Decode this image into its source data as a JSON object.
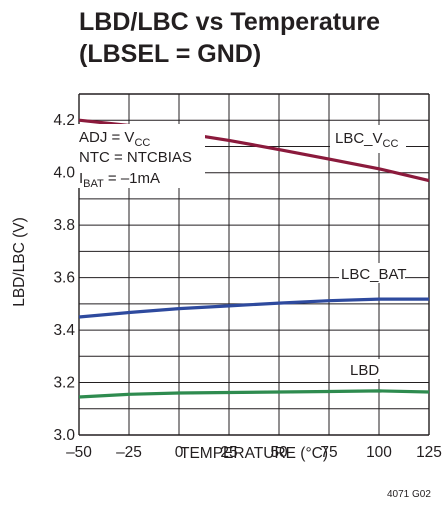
{
  "chart_data": {
    "type": "line",
    "title_line1": "LBD/LBC vs Temperature",
    "title_line2": "(LBSEL = GND)",
    "xlabel": "TEMPERATURE (°C)",
    "ylabel": "LBD/LBC (V)",
    "xlim": [
      -50,
      125
    ],
    "ylim": [
      3.0,
      4.3
    ],
    "grid": true,
    "x_ticks": [
      -50,
      -25,
      0,
      25,
      50,
      75,
      100,
      125
    ],
    "x_tick_labels": [
      "–50",
      "–25",
      "0",
      "25",
      "50",
      "75",
      "100",
      "125"
    ],
    "y_ticks": [
      3.0,
      3.2,
      3.4,
      3.6,
      3.8,
      4.0,
      4.2
    ],
    "y_tick_labels": [
      "3.0",
      "3.2",
      "3.4",
      "3.6",
      "3.8",
      "4.0",
      "4.2"
    ],
    "series": [
      {
        "name": "LBC_VCC",
        "color": "#8b1a3c",
        "x": [
          -50,
          -25,
          0,
          25,
          50,
          75,
          100,
          125
        ],
        "y": [
          4.2,
          4.18,
          4.153,
          4.123,
          4.088,
          4.052,
          4.015,
          3.97
        ]
      },
      {
        "name": "LBC_BAT",
        "color": "#2e4a9e",
        "x": [
          -50,
          -25,
          0,
          25,
          50,
          75,
          100,
          125
        ],
        "y": [
          3.45,
          3.467,
          3.482,
          3.492,
          3.503,
          3.512,
          3.518,
          3.518
        ]
      },
      {
        "name": "LBD",
        "color": "#2e8b4f",
        "x": [
          -50,
          -25,
          0,
          25,
          50,
          75,
          100,
          125
        ],
        "y": [
          3.145,
          3.155,
          3.16,
          3.162,
          3.164,
          3.166,
          3.168,
          3.164
        ]
      }
    ],
    "annotations": {
      "lbc_vcc_main": "LBC_V",
      "lbc_vcc_sub": "CC",
      "lbc_bat": "LBC_BAT",
      "lbd": "LBD",
      "cond_adj_main": "ADJ = V",
      "cond_adj_sub": "CC",
      "cond_ntc": "NTC = NTCBIAS",
      "cond_ibat_main": "I",
      "cond_ibat_sub": "BAT",
      "cond_ibat_rest": " = –1mA"
    },
    "figure_id": "4071 G02"
  }
}
